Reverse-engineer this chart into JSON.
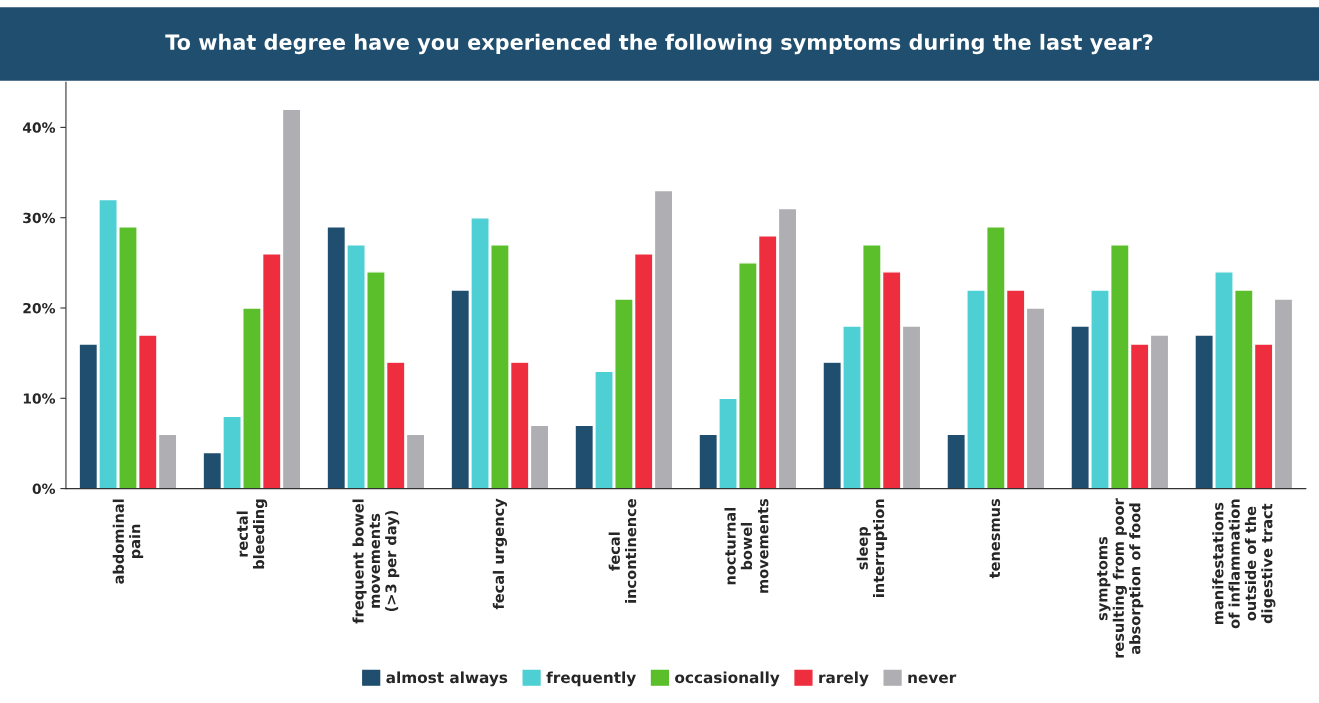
{
  "chart_data": {
    "type": "bar",
    "title": "To what degree have you experienced the following symptoms during the last year?",
    "categories": [
      "abdominal\npain",
      "rectal\nbleeding",
      "frequent bowel\nmovements\n(>3 per day)",
      "fecal urgency",
      "fecal\nincontinence",
      "nocturnal\nbowel\nmovements",
      "sleep\ninterruption",
      "tenesmus",
      "symptoms\nresulting from poor\nabsorption of food",
      "manifestations\nof inflammation\noutside of the\ndigestive tract"
    ],
    "series": [
      {
        "name": "almost always",
        "color": "#1f4e6e",
        "values": [
          16,
          4,
          29,
          22,
          7,
          6,
          14,
          6,
          18,
          17
        ]
      },
      {
        "name": "frequently",
        "color": "#4ecfd3",
        "values": [
          32,
          8,
          27,
          30,
          13,
          10,
          18,
          22,
          22,
          24
        ]
      },
      {
        "name": "occasionally",
        "color": "#5abf2a",
        "values": [
          29,
          20,
          24,
          27,
          21,
          25,
          27,
          29,
          27,
          22
        ]
      },
      {
        "name": "rarely",
        "color": "#ee2e3e",
        "values": [
          17,
          26,
          14,
          14,
          26,
          28,
          24,
          22,
          16,
          16
        ]
      },
      {
        "name": "never",
        "color": "#aeaeb3",
        "values": [
          6,
          42,
          6,
          7,
          33,
          31,
          18,
          20,
          17,
          21
        ]
      }
    ],
    "ylim": [
      0,
      45
    ],
    "yticks": [
      {
        "value": 0,
        "label": "0%"
      },
      {
        "value": 10,
        "label": "10%"
      },
      {
        "value": 20,
        "label": "20%"
      },
      {
        "value": 30,
        "label": "30%"
      },
      {
        "value": 40,
        "label": "40%"
      }
    ],
    "grid": false,
    "legend": "bottom"
  }
}
